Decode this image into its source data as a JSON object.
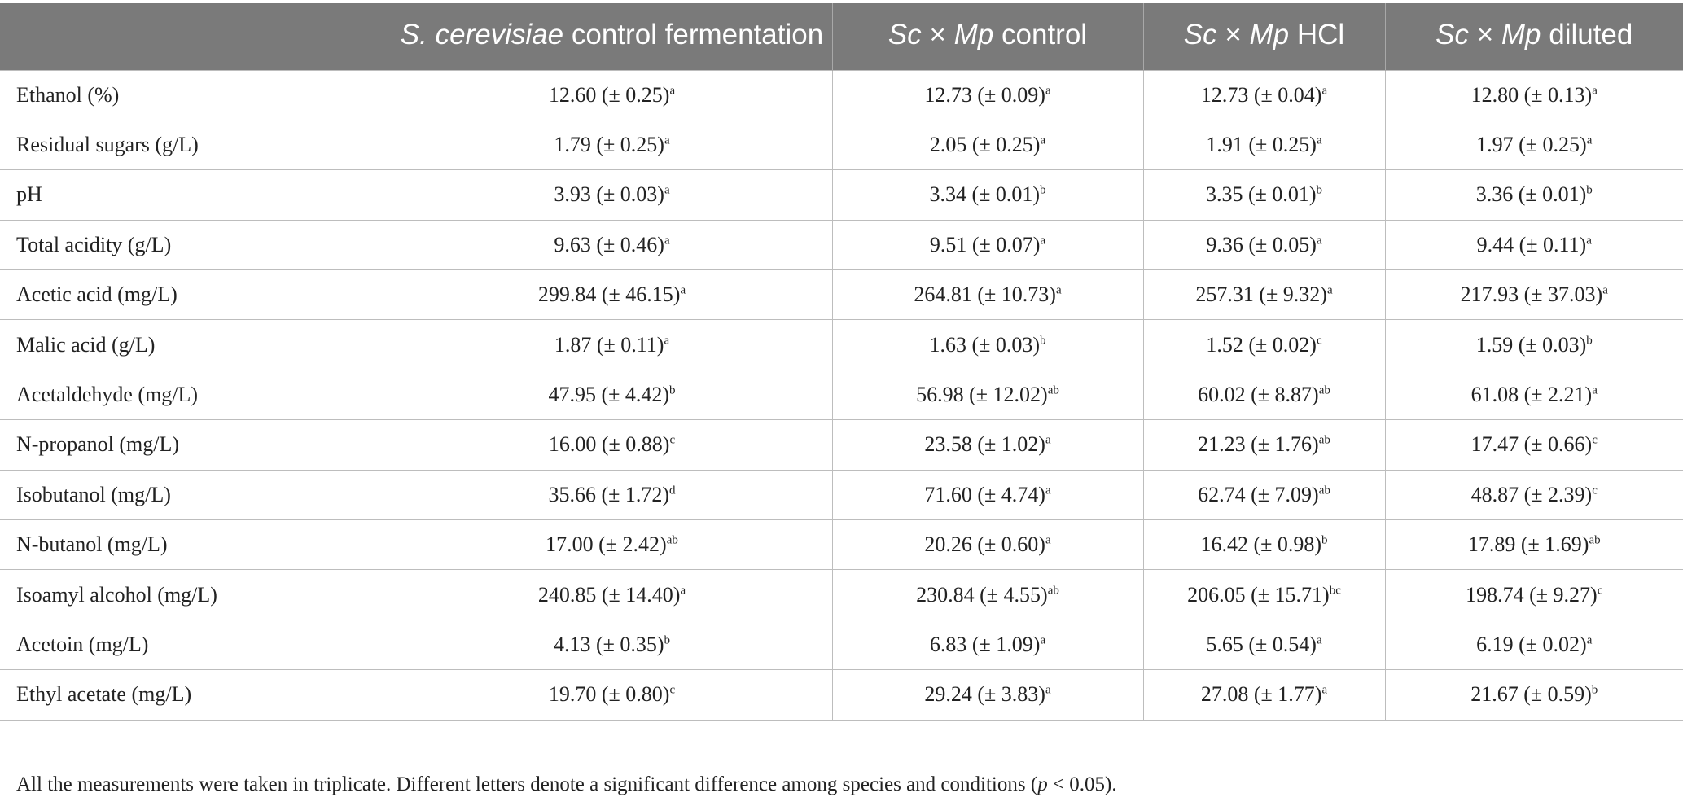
{
  "header": {
    "col0": "",
    "col1_italic": "S. cerevisiae",
    "col1_rest": " control fermentation",
    "col2_a": "Sc",
    "col2_x": " × ",
    "col2_b": "Mp",
    "col2_rest": " control",
    "col3_a": "Sc",
    "col3_x": " × ",
    "col3_b": "Mp",
    "col3_rest": " HCl",
    "col4_a": "Sc",
    "col4_x": " × ",
    "col4_b": "Mp",
    "col4_rest": " diluted"
  },
  "rows": [
    {
      "label": "Ethanol (%)",
      "c1": "12.60 (± 0.25)",
      "s1": "a",
      "c2": "12.73 (± 0.09)",
      "s2": "a",
      "c3": "12.73 (± 0.04)",
      "s3": "a",
      "c4": "12.80 (± 0.13)",
      "s4": "a"
    },
    {
      "label": "Residual sugars (g/L)",
      "c1": "1.79 (± 0.25)",
      "s1": "a",
      "c2": "2.05 (± 0.25)",
      "s2": "a",
      "c3": "1.91 (± 0.25)",
      "s3": "a",
      "c4": "1.97 (± 0.25)",
      "s4": "a"
    },
    {
      "label": "pH",
      "c1": "3.93 (± 0.03)",
      "s1": "a",
      "c2": "3.34 (± 0.01)",
      "s2": "b",
      "c3": "3.35 (± 0.01)",
      "s3": "b",
      "c4": "3.36 (± 0.01)",
      "s4": "b"
    },
    {
      "label": "Total acidity (g/L)",
      "c1": "9.63 (± 0.46)",
      "s1": "a",
      "c2": "9.51 (± 0.07)",
      "s2": "a",
      "c3": "9.36 (± 0.05)",
      "s3": "a",
      "c4": "9.44 (± 0.11)",
      "s4": "a"
    },
    {
      "label": "Acetic acid (mg/L)",
      "c1": "299.84 (± 46.15)",
      "s1": "a",
      "c2": "264.81 (± 10.73)",
      "s2": "a",
      "c3": "257.31 (± 9.32)",
      "s3": "a",
      "c4": "217.93 (± 37.03)",
      "s4": "a"
    },
    {
      "label": "Malic acid (g/L)",
      "c1": "1.87 (± 0.11)",
      "s1": "a",
      "c2": "1.63 (± 0.03)",
      "s2": "b",
      "c3": "1.52 (± 0.02)",
      "s3": "c",
      "c4": "1.59 (± 0.03)",
      "s4": "b"
    },
    {
      "label": "Acetaldehyde (mg/L)",
      "c1": "47.95 (± 4.42)",
      "s1": "b",
      "c2": "56.98 (± 12.02)",
      "s2": "ab",
      "c3": "60.02 (± 8.87)",
      "s3": "ab",
      "c4": "61.08 (± 2.21)",
      "s4": "a"
    },
    {
      "label": "N-propanol (mg/L)",
      "c1": "16.00 (± 0.88)",
      "s1": "c",
      "c2": "23.58 (± 1.02)",
      "s2": "a",
      "c3": "21.23 (± 1.76)",
      "s3": "ab",
      "c4": "17.47 (± 0.66)",
      "s4": "c"
    },
    {
      "label": "Isobutanol (mg/L)",
      "c1": "35.66 (± 1.72)",
      "s1": "d",
      "c2": "71.60 (± 4.74)",
      "s2": "a",
      "c3": "62.74 (± 7.09)",
      "s3": "ab",
      "c4": "48.87 (± 2.39)",
      "s4": "c"
    },
    {
      "label": "N-butanol (mg/L)",
      "c1": "17.00 (± 2.42)",
      "s1": "ab",
      "c2": "20.26 (± 0.60)",
      "s2": "a",
      "c3": "16.42 (± 0.98)",
      "s3": "b",
      "c4": "17.89 (± 1.69)",
      "s4": "ab"
    },
    {
      "label": "Isoamyl alcohol (mg/L)",
      "c1": "240.85 (± 14.40)",
      "s1": "a",
      "c2": "230.84 (± 4.55)",
      "s2": "ab",
      "c3": "206.05 (± 15.71)",
      "s3": "bc",
      "c4": "198.74 (± 9.27)",
      "s4": "c"
    },
    {
      "label": "Acetoin (mg/L)",
      "c1": "4.13 (± 0.35)",
      "s1": "b",
      "c2": "6.83 (± 1.09)",
      "s2": "a",
      "c3": "5.65 (± 0.54)",
      "s3": "a",
      "c4": "6.19 (± 0.02)",
      "s4": "a"
    },
    {
      "label": "Ethyl acetate (mg/L)",
      "c1": "19.70 (± 0.80)",
      "s1": "c",
      "c2": "29.24 (± 3.83)",
      "s2": "a",
      "c3": "27.08 (± 1.77)",
      "s3": "a",
      "c4": "21.67 (± 0.59)",
      "s4": "b"
    }
  ],
  "footnote": {
    "text": "All the measurements were taken in triplicate. Different letters denote a significant difference among species and conditions (",
    "p": "p",
    "tail": " < 0.05)."
  }
}
